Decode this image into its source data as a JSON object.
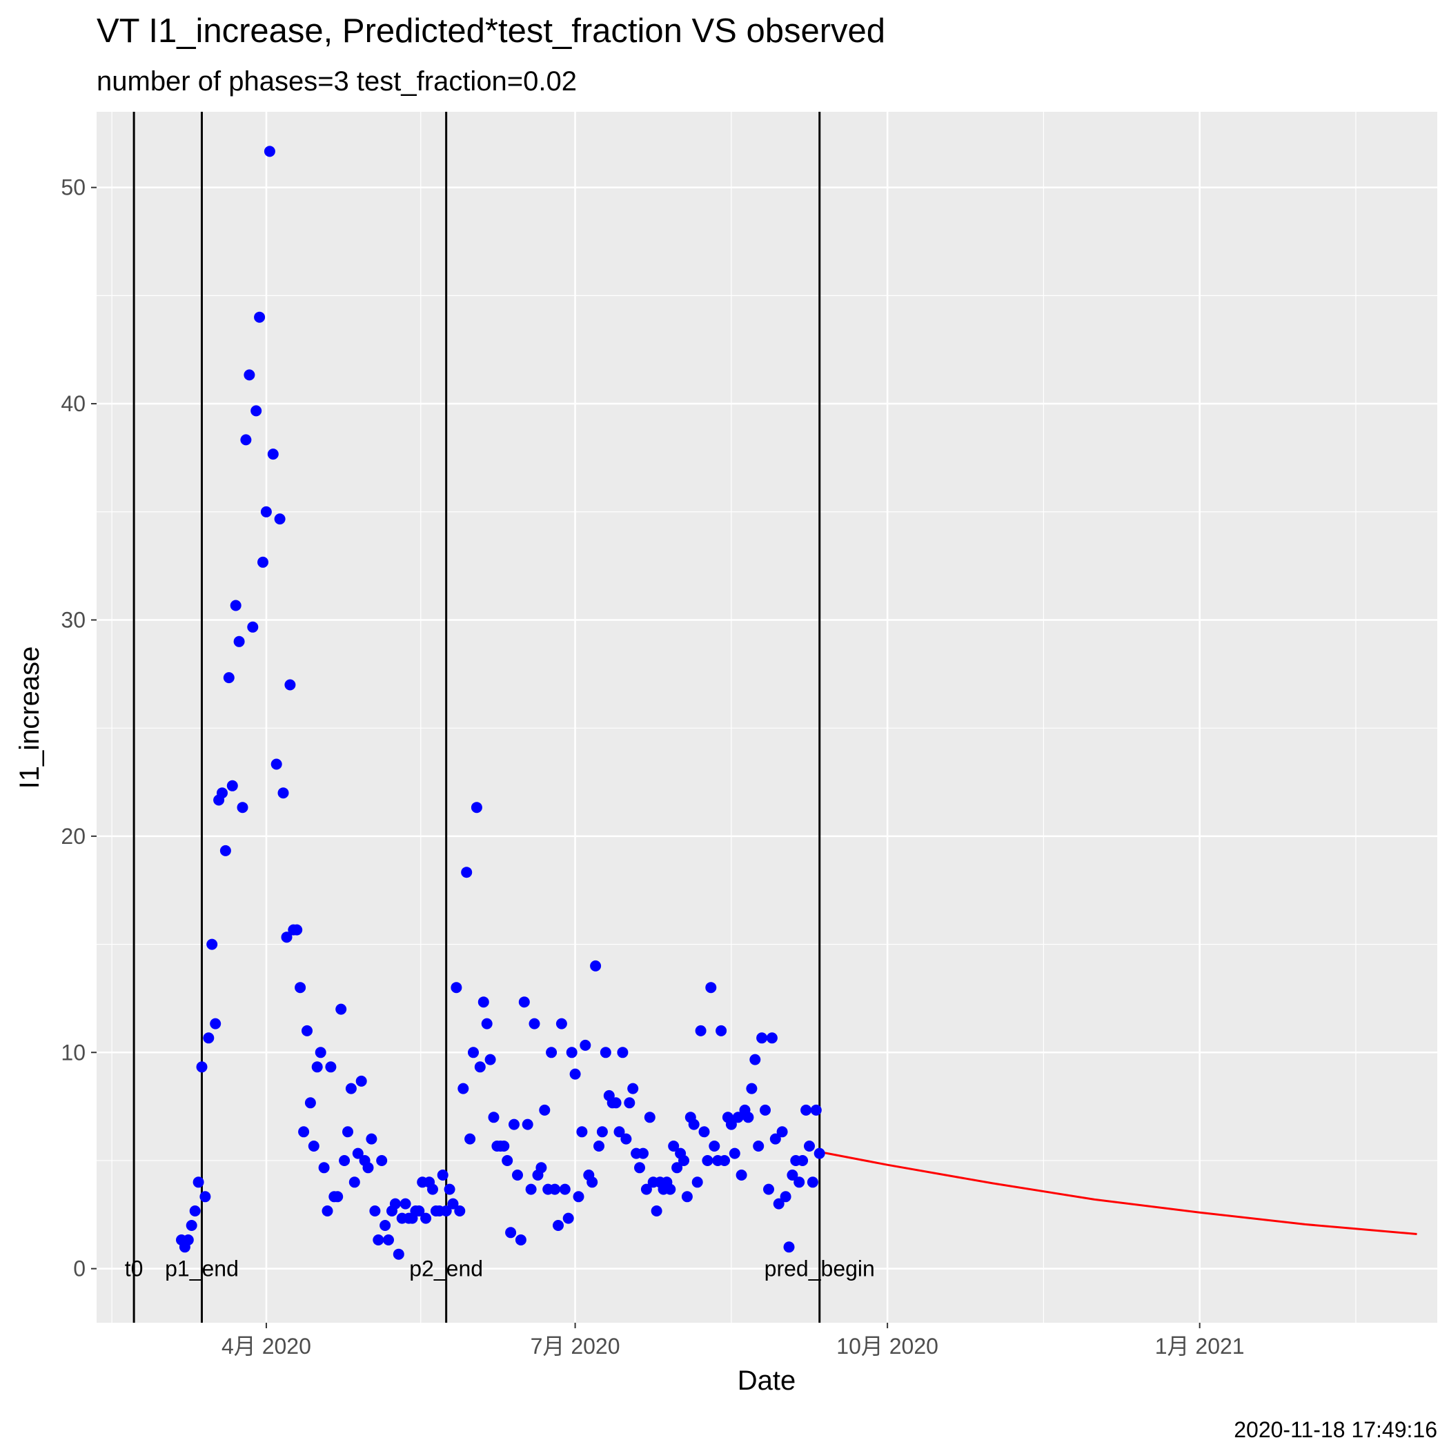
{
  "chart_data": {
    "type": "scatter",
    "title": "VT I1_increase, Predicted*test_fraction VS observed",
    "subtitle": "number of phases=3   test_fraction=0.02",
    "xlabel": "Date",
    "ylabel": "I1_increase",
    "caption": "2020-11-18 17:49:16",
    "xlim": [
      "2020-02-11",
      "2021-03-12"
    ],
    "ylim": [
      -2.5,
      53.5
    ],
    "x_ticks": [
      {
        "date": "2020-04-01",
        "label": "4月 2020"
      },
      {
        "date": "2020-07-01",
        "label": "7月 2020"
      },
      {
        "date": "2020-10-01",
        "label": "10月 2020"
      },
      {
        "date": "2021-01-01",
        "label": "1月 2021"
      }
    ],
    "y_ticks": [
      0,
      10,
      20,
      30,
      40,
      50
    ],
    "grid": true,
    "colors": {
      "observed": "#0000ff",
      "predicted": "#ff0000",
      "vlines": "#000000",
      "panel": "#ebebeb",
      "grid": "#ffffff"
    },
    "vlines": [
      {
        "date": "2020-02-22",
        "label": "t0"
      },
      {
        "date": "2020-03-13",
        "label": "p1_end"
      },
      {
        "date": "2020-05-24",
        "label": "p2_end"
      },
      {
        "date": "2020-09-11",
        "label": "pred_begin"
      }
    ],
    "observed": {
      "name": "observed",
      "points": [
        [
          "2020-03-07",
          1.33
        ],
        [
          "2020-03-08",
          1.0
        ],
        [
          "2020-03-09",
          1.33
        ],
        [
          "2020-03-10",
          2.0
        ],
        [
          "2020-03-11",
          2.67
        ],
        [
          "2020-03-12",
          4.0
        ],
        [
          "2020-03-13",
          9.33
        ],
        [
          "2020-03-14",
          3.33
        ],
        [
          "2020-03-15",
          10.67
        ],
        [
          "2020-03-16",
          15.0
        ],
        [
          "2020-03-17",
          11.33
        ],
        [
          "2020-03-18",
          21.67
        ],
        [
          "2020-03-19",
          22.0
        ],
        [
          "2020-03-20",
          19.33
        ],
        [
          "2020-03-21",
          27.33
        ],
        [
          "2020-03-22",
          22.33
        ],
        [
          "2020-03-23",
          30.67
        ],
        [
          "2020-03-24",
          29.0
        ],
        [
          "2020-03-25",
          21.33
        ],
        [
          "2020-03-26",
          38.33
        ],
        [
          "2020-03-27",
          41.33
        ],
        [
          "2020-03-28",
          29.67
        ],
        [
          "2020-03-29",
          39.67
        ],
        [
          "2020-03-30",
          44.0
        ],
        [
          "2020-03-31",
          32.67
        ],
        [
          "2020-04-01",
          35.0
        ],
        [
          "2020-04-02",
          51.67
        ],
        [
          "2020-04-03",
          37.67
        ],
        [
          "2020-04-04",
          23.33
        ],
        [
          "2020-04-05",
          34.67
        ],
        [
          "2020-04-06",
          22.0
        ],
        [
          "2020-04-07",
          15.33
        ],
        [
          "2020-04-08",
          27.0
        ],
        [
          "2020-04-09",
          15.67
        ],
        [
          "2020-04-10",
          15.67
        ],
        [
          "2020-04-11",
          13.0
        ],
        [
          "2020-04-12",
          6.33
        ],
        [
          "2020-04-13",
          11.0
        ],
        [
          "2020-04-14",
          7.67
        ],
        [
          "2020-04-15",
          5.67
        ],
        [
          "2020-04-16",
          9.33
        ],
        [
          "2020-04-17",
          10.0
        ],
        [
          "2020-04-18",
          4.67
        ],
        [
          "2020-04-19",
          2.67
        ],
        [
          "2020-04-20",
          9.33
        ],
        [
          "2020-04-21",
          3.33
        ],
        [
          "2020-04-22",
          3.33
        ],
        [
          "2020-04-23",
          12.0
        ],
        [
          "2020-04-24",
          5.0
        ],
        [
          "2020-04-25",
          6.33
        ],
        [
          "2020-04-26",
          8.33
        ],
        [
          "2020-04-27",
          4.0
        ],
        [
          "2020-04-28",
          5.33
        ],
        [
          "2020-04-29",
          8.67
        ],
        [
          "2020-04-30",
          5.0
        ],
        [
          "2020-05-01",
          4.67
        ],
        [
          "2020-05-02",
          6.0
        ],
        [
          "2020-05-03",
          2.67
        ],
        [
          "2020-05-04",
          1.33
        ],
        [
          "2020-05-05",
          5.0
        ],
        [
          "2020-05-06",
          2.0
        ],
        [
          "2020-05-07",
          1.33
        ],
        [
          "2020-05-08",
          2.67
        ],
        [
          "2020-05-09",
          3.0
        ],
        [
          "2020-05-10",
          0.67
        ],
        [
          "2020-05-11",
          2.33
        ],
        [
          "2020-05-12",
          3.0
        ],
        [
          "2020-05-13",
          2.33
        ],
        [
          "2020-05-14",
          2.33
        ],
        [
          "2020-05-15",
          2.67
        ],
        [
          "2020-05-16",
          2.67
        ],
        [
          "2020-05-17",
          4.0
        ],
        [
          "2020-05-18",
          2.33
        ],
        [
          "2020-05-19",
          4.0
        ],
        [
          "2020-05-20",
          3.67
        ],
        [
          "2020-05-21",
          2.67
        ],
        [
          "2020-05-22",
          2.67
        ],
        [
          "2020-05-23",
          4.33
        ],
        [
          "2020-05-24",
          2.67
        ],
        [
          "2020-05-25",
          3.67
        ],
        [
          "2020-05-26",
          3.0
        ],
        [
          "2020-05-27",
          13.0
        ],
        [
          "2020-05-28",
          2.67
        ],
        [
          "2020-05-29",
          8.33
        ],
        [
          "2020-05-30",
          18.33
        ],
        [
          "2020-05-31",
          6.0
        ],
        [
          "2020-06-01",
          10.0
        ],
        [
          "2020-06-02",
          21.33
        ],
        [
          "2020-06-03",
          9.33
        ],
        [
          "2020-06-04",
          12.33
        ],
        [
          "2020-06-05",
          11.33
        ],
        [
          "2020-06-06",
          9.67
        ],
        [
          "2020-06-07",
          7.0
        ],
        [
          "2020-06-08",
          5.67
        ],
        [
          "2020-06-09",
          5.67
        ],
        [
          "2020-06-10",
          5.67
        ],
        [
          "2020-06-11",
          5.0
        ],
        [
          "2020-06-12",
          1.67
        ],
        [
          "2020-06-13",
          6.67
        ],
        [
          "2020-06-14",
          4.33
        ],
        [
          "2020-06-15",
          1.33
        ],
        [
          "2020-06-16",
          12.33
        ],
        [
          "2020-06-17",
          6.67
        ],
        [
          "2020-06-18",
          3.67
        ],
        [
          "2020-06-19",
          11.33
        ],
        [
          "2020-06-20",
          4.33
        ],
        [
          "2020-06-21",
          4.67
        ],
        [
          "2020-06-22",
          7.33
        ],
        [
          "2020-06-23",
          3.67
        ],
        [
          "2020-06-24",
          10.0
        ],
        [
          "2020-06-25",
          3.67
        ],
        [
          "2020-06-26",
          2.0
        ],
        [
          "2020-06-27",
          11.33
        ],
        [
          "2020-06-28",
          3.67
        ],
        [
          "2020-06-29",
          2.33
        ],
        [
          "2020-06-30",
          10.0
        ],
        [
          "2020-07-01",
          9.0
        ],
        [
          "2020-07-02",
          3.33
        ],
        [
          "2020-07-03",
          6.33
        ],
        [
          "2020-07-04",
          10.33
        ],
        [
          "2020-07-05",
          4.33
        ],
        [
          "2020-07-06",
          4.0
        ],
        [
          "2020-07-07",
          14.0
        ],
        [
          "2020-07-08",
          5.67
        ],
        [
          "2020-07-09",
          6.33
        ],
        [
          "2020-07-10",
          10.0
        ],
        [
          "2020-07-11",
          8.0
        ],
        [
          "2020-07-12",
          7.67
        ],
        [
          "2020-07-13",
          7.67
        ],
        [
          "2020-07-14",
          6.33
        ],
        [
          "2020-07-15",
          10.0
        ],
        [
          "2020-07-16",
          6.0
        ],
        [
          "2020-07-17",
          7.67
        ],
        [
          "2020-07-18",
          8.33
        ],
        [
          "2020-07-19",
          5.33
        ],
        [
          "2020-07-20",
          4.67
        ],
        [
          "2020-07-21",
          5.33
        ],
        [
          "2020-07-22",
          3.67
        ],
        [
          "2020-07-23",
          7.0
        ],
        [
          "2020-07-24",
          4.0
        ],
        [
          "2020-07-25",
          2.67
        ],
        [
          "2020-07-26",
          4.0
        ],
        [
          "2020-07-27",
          3.67
        ],
        [
          "2020-07-28",
          4.0
        ],
        [
          "2020-07-29",
          3.67
        ],
        [
          "2020-07-30",
          5.67
        ],
        [
          "2020-07-31",
          4.67
        ],
        [
          "2020-08-01",
          5.33
        ],
        [
          "2020-08-02",
          5.0
        ],
        [
          "2020-08-03",
          3.33
        ],
        [
          "2020-08-04",
          7.0
        ],
        [
          "2020-08-05",
          6.67
        ],
        [
          "2020-08-06",
          4.0
        ],
        [
          "2020-08-07",
          11.0
        ],
        [
          "2020-08-08",
          6.33
        ],
        [
          "2020-08-09",
          5.0
        ],
        [
          "2020-08-10",
          13.0
        ],
        [
          "2020-08-11",
          5.67
        ],
        [
          "2020-08-12",
          5.0
        ],
        [
          "2020-08-13",
          11.0
        ],
        [
          "2020-08-14",
          5.0
        ],
        [
          "2020-08-15",
          7.0
        ],
        [
          "2020-08-16",
          6.67
        ],
        [
          "2020-08-17",
          5.33
        ],
        [
          "2020-08-18",
          7.0
        ],
        [
          "2020-08-19",
          4.33
        ],
        [
          "2020-08-20",
          7.33
        ],
        [
          "2020-08-21",
          7.0
        ],
        [
          "2020-08-22",
          8.33
        ],
        [
          "2020-08-23",
          9.67
        ],
        [
          "2020-08-24",
          5.67
        ],
        [
          "2020-08-25",
          10.67
        ],
        [
          "2020-08-26",
          7.33
        ],
        [
          "2020-08-27",
          3.67
        ],
        [
          "2020-08-28",
          10.67
        ],
        [
          "2020-08-29",
          6.0
        ],
        [
          "2020-08-30",
          3.0
        ],
        [
          "2020-08-31",
          6.33
        ],
        [
          "2020-09-01",
          3.33
        ],
        [
          "2020-09-02",
          1.0
        ],
        [
          "2020-09-03",
          4.33
        ],
        [
          "2020-09-04",
          5.0
        ],
        [
          "2020-09-05",
          4.0
        ],
        [
          "2020-09-06",
          5.0
        ],
        [
          "2020-09-07",
          7.33
        ],
        [
          "2020-09-08",
          5.67
        ],
        [
          "2020-09-09",
          4.0
        ],
        [
          "2020-09-10",
          7.33
        ],
        [
          "2020-09-11",
          5.33
        ]
      ]
    },
    "predicted": {
      "name": "predicted",
      "points": [
        [
          "2020-09-11",
          5.4
        ],
        [
          "2020-10-01",
          4.8
        ],
        [
          "2020-11-01",
          3.95
        ],
        [
          "2020-12-01",
          3.2
        ],
        [
          "2021-01-01",
          2.6
        ],
        [
          "2021-02-01",
          2.05
        ],
        [
          "2021-03-06",
          1.6
        ]
      ]
    }
  }
}
